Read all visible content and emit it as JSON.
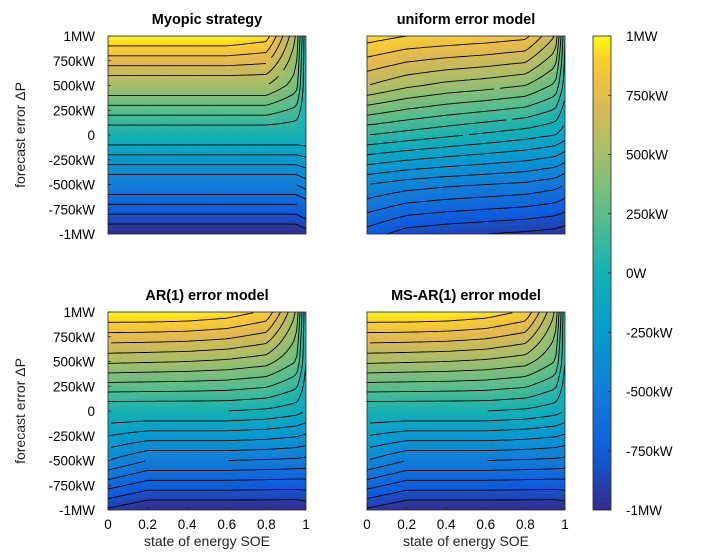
{
  "chart_data": {
    "type": "heatmap",
    "colormap": "parula",
    "grid": false,
    "colorbar": {
      "position": "right",
      "range": [
        -1000,
        1000
      ],
      "unit": "kW",
      "tick_values": [
        1000,
        750,
        500,
        250,
        0,
        -250,
        -500,
        -750,
        -1000
      ],
      "tick_labels": [
        "1MW",
        "750kW",
        "500kW",
        "250kW",
        "0W",
        "-250kW",
        "-500kW",
        "-750kW",
        "-1MW"
      ]
    },
    "shared_axes": {
      "xlabel": "state of energy SOE",
      "ylabel": "forecast error  ΔP",
      "xlim": [
        0,
        1
      ],
      "ylim": [
        -1000,
        1000
      ],
      "x_ticks": [
        0,
        0.2,
        0.4,
        0.6,
        0.8,
        1
      ],
      "x_tick_labels": [
        "0",
        "0.2",
        "0.4",
        "0.6",
        "0.8",
        "1"
      ],
      "y_ticks": [
        1000,
        750,
        500,
        250,
        0,
        -250,
        -500,
        -750,
        -1000
      ],
      "y_tick_labels": [
        "1MW",
        "750kW",
        "500kW",
        "250kW",
        "0",
        "-250kW",
        "-500kW",
        "-750kW",
        "-1MW"
      ]
    },
    "panels": [
      {
        "title": "Myopic strategy",
        "model": "myopic",
        "x_samples": [
          0,
          0.2,
          0.4,
          0.6,
          0.8,
          0.95,
          1
        ],
        "y_samples": [
          1000,
          500,
          0,
          -500,
          -1000
        ],
        "z": [
          [
            1000,
            1000,
            1000,
            1000,
            950,
            500,
            0
          ],
          [
            500,
            500,
            500,
            500,
            500,
            350,
            0
          ],
          [
            0,
            0,
            0,
            0,
            0,
            0,
            0
          ],
          [
            -500,
            -500,
            -500,
            -500,
            -500,
            -500,
            -450
          ],
          [
            -1000,
            -1000,
            -1000,
            -1000,
            -1000,
            -1000,
            -950
          ]
        ]
      },
      {
        "title": "uniform error model",
        "model": "uniform",
        "x_samples": [
          0,
          0.2,
          0.4,
          0.6,
          0.8,
          0.95,
          1
        ],
        "y_samples": [
          1000,
          500,
          0,
          -500,
          -1000
        ],
        "z": [
          [
            950,
            900,
            880,
            860,
            830,
            600,
            100
          ],
          [
            600,
            520,
            470,
            440,
            400,
            280,
            50
          ],
          [
            100,
            60,
            20,
            -20,
            -60,
            -100,
            -150
          ],
          [
            -400,
            -450,
            -480,
            -500,
            -520,
            -560,
            -600
          ],
          [
            -750,
            -850,
            -880,
            -900,
            -920,
            -940,
            -960
          ]
        ]
      },
      {
        "title": "AR(1) error model",
        "model": "ar1",
        "x_samples": [
          0,
          0.2,
          0.4,
          0.6,
          0.8,
          0.95,
          1
        ],
        "y_samples": [
          1000,
          500,
          0,
          -500,
          -1000
        ],
        "z": [
          [
            1000,
            1000,
            990,
            960,
            880,
            500,
            0
          ],
          [
            520,
            510,
            500,
            480,
            440,
            300,
            0
          ],
          [
            0,
            0,
            0,
            0,
            -20,
            -60,
            -100
          ],
          [
            -400,
            -500,
            -500,
            -500,
            -510,
            -520,
            -530
          ],
          [
            -920,
            -1000,
            -1000,
            -1000,
            -1000,
            -1000,
            -980
          ]
        ]
      },
      {
        "title": "MS-AR(1) error model",
        "model": "msar1",
        "x_samples": [
          0,
          0.2,
          0.4,
          0.6,
          0.8,
          0.95,
          1
        ],
        "y_samples": [
          1000,
          500,
          0,
          -500,
          -1000
        ],
        "z": [
          [
            1000,
            1000,
            990,
            960,
            880,
            500,
            0
          ],
          [
            520,
            510,
            500,
            480,
            440,
            300,
            0
          ],
          [
            0,
            0,
            0,
            0,
            -20,
            -60,
            -100
          ],
          [
            -400,
            -500,
            -500,
            -500,
            -510,
            -520,
            -530
          ],
          [
            -920,
            -1000,
            -1000,
            -1000,
            -1000,
            -1000,
            -980
          ]
        ]
      }
    ]
  }
}
